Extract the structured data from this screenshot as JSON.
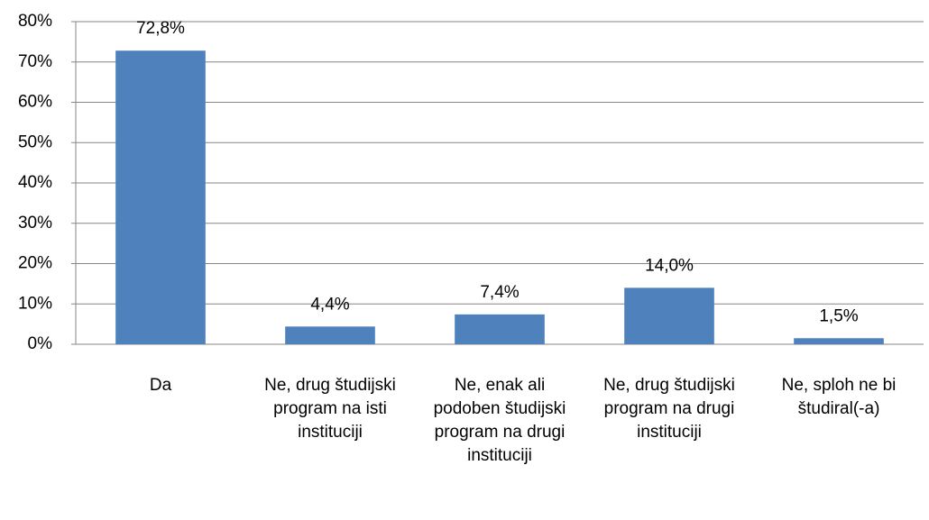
{
  "chart_data": {
    "type": "bar",
    "categories": [
      "Da",
      "Ne, drug študijski program na isti instituciji",
      "Ne, enak ali podoben študijski program na drugi instituciji",
      "Ne, drug študijski program na drugi instituciji",
      "Ne, sploh ne bi študiral(-a)"
    ],
    "values": [
      72.8,
      4.4,
      7.4,
      14.0,
      1.5
    ],
    "value_labels": [
      "72,8%",
      "4,4%",
      "7,4%",
      "14,0%",
      "1,5%"
    ],
    "color": "#4f81bd",
    "ylim": [
      0,
      80
    ],
    "yticks": [
      {
        "value": 0,
        "label": "0%"
      },
      {
        "value": 10,
        "label": "10%"
      },
      {
        "value": 20,
        "label": "20%"
      },
      {
        "value": 30,
        "label": "30%"
      },
      {
        "value": 40,
        "label": "40%"
      },
      {
        "value": 50,
        "label": "50%"
      },
      {
        "value": 60,
        "label": "60%"
      },
      {
        "value": 70,
        "label": "70%"
      },
      {
        "value": 80,
        "label": "80%"
      }
    ],
    "grid": true
  }
}
